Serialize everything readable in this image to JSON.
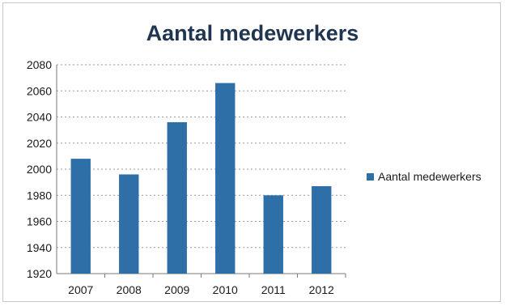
{
  "chart_data": {
    "type": "bar",
    "title": "Aantal medewerkers",
    "categories": [
      "2007",
      "2008",
      "2009",
      "2010",
      "2011",
      "2012"
    ],
    "series": [
      {
        "name": "Aantal medewerkers",
        "values": [
          2008,
          1996,
          2036,
          2066,
          1980,
          1987
        ]
      }
    ],
    "ylim": [
      1920,
      2080
    ],
    "yticks": [
      1920,
      1940,
      1960,
      1980,
      2000,
      2020,
      2040,
      2060,
      2080
    ],
    "xlabel": "",
    "ylabel": "",
    "grid": true,
    "legend": "right",
    "bar_color": "#2f6fa7"
  }
}
